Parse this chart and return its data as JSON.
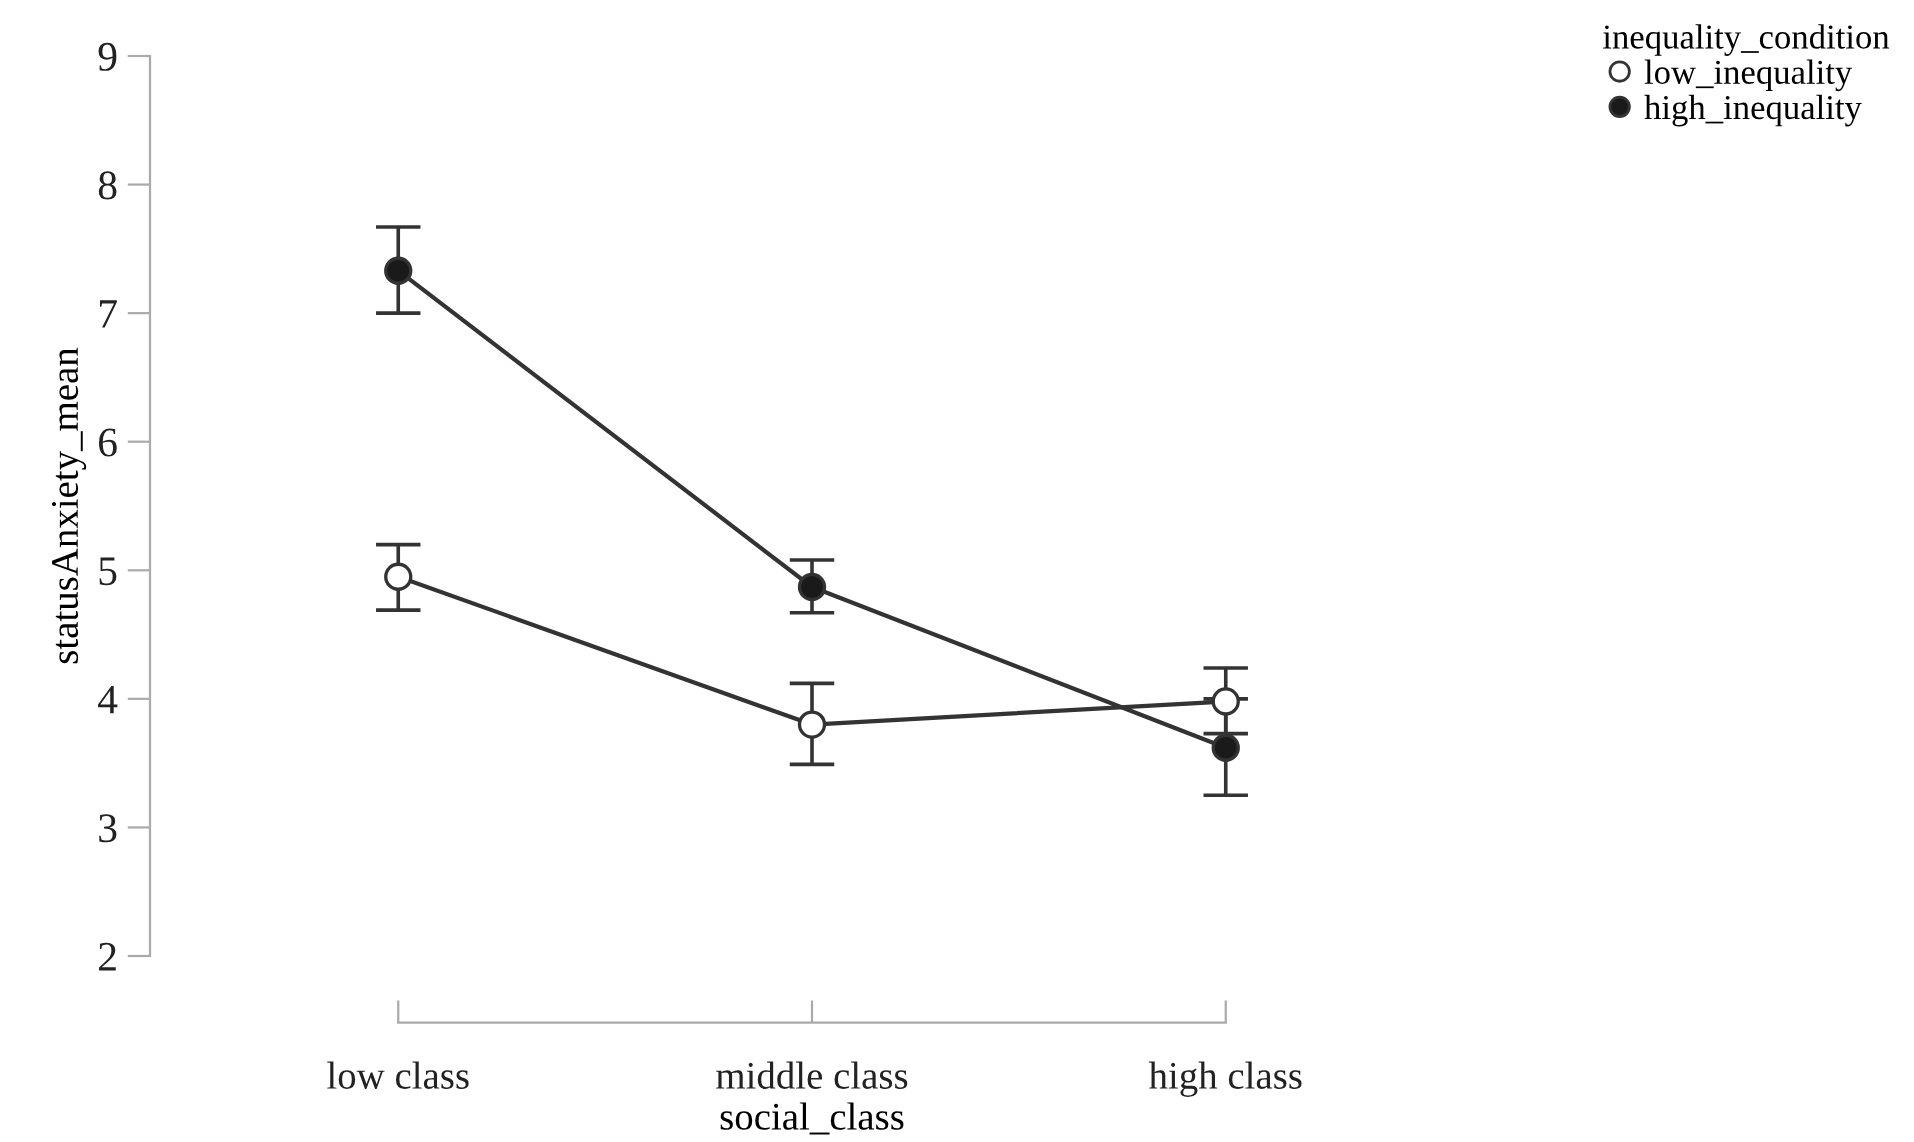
{
  "chart_data": {
    "type": "line",
    "xlabel": "social_class",
    "ylabel": "statusAnxiety_mean",
    "legend_title": "inequality_condition",
    "categories": [
      "low class",
      "middle class",
      "high class"
    ],
    "series": [
      {
        "name": "low_inequality",
        "color": "#333333",
        "colors": [
          "#ffffff",
          "#ffffff",
          "#ffffff"
        ],
        "values": [
          4.95,
          3.8,
          3.98
        ],
        "errors": [
          [
            4.69,
            5.2
          ],
          [
            3.49,
            4.12
          ],
          [
            3.73,
            4.24
          ]
        ]
      },
      {
        "name": "high_inequality",
        "color": "#333333",
        "colors": [
          "#1a1a1a",
          "#1a1a1a",
          "#1a1a1a"
        ],
        "values": [
          7.33,
          4.87,
          3.62
        ],
        "errors": [
          [
            7.0,
            7.67
          ],
          [
            4.67,
            5.08
          ],
          [
            3.25,
            4.0
          ]
        ]
      }
    ],
    "ylim": [
      2,
      9
    ],
    "yticks": [
      2,
      3,
      4,
      5,
      6,
      7,
      8,
      9
    ],
    "grid": false,
    "legend": "top right",
    "marker": "circle",
    "line_style": "solid"
  }
}
